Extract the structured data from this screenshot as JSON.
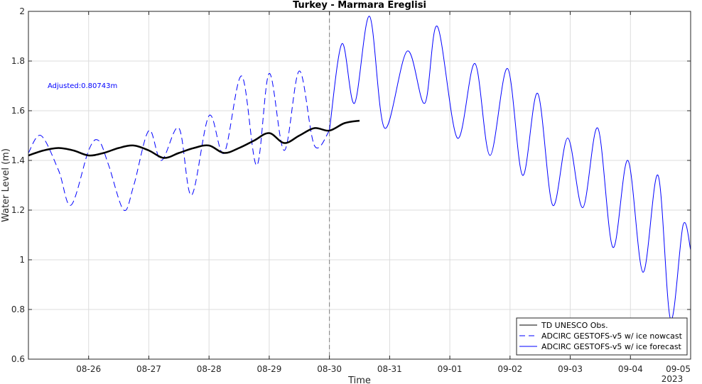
{
  "chart_data": {
    "type": "line",
    "title": "Turkey - Marmara Ereglisi",
    "xlabel": "Time",
    "ylabel": "Water Level (m)",
    "year_label": "2023",
    "annotation": "Adjusted:0.80743m",
    "ylim": [
      0.6,
      2.0
    ],
    "xlim": [
      "2023-08-25T00:00",
      "2023-09-05T00:00"
    ],
    "y_ticks": [
      0.6,
      0.8,
      1.0,
      1.2,
      1.4,
      1.6,
      1.8,
      2.0
    ],
    "y_tick_labels": [
      "0.6",
      "0.8",
      "1",
      "1.2",
      "1.4",
      "1.6",
      "1.8",
      "2"
    ],
    "x_ticks": [
      "2023-08-26",
      "2023-08-27",
      "2023-08-28",
      "2023-08-29",
      "2023-08-30",
      "2023-08-31",
      "2023-09-01",
      "2023-09-02",
      "2023-09-03",
      "2023-09-04",
      "2023-09-05"
    ],
    "x_tick_labels": [
      "08-26",
      "08-27",
      "08-28",
      "08-29",
      "08-30",
      "08-31",
      "09-01",
      "09-02",
      "09-03",
      "09-04",
      "09-05"
    ],
    "forecast_start": "2023-08-30T00:00",
    "grid": true,
    "legend_position": "bottom-right",
    "colors": {
      "obs": "#000000",
      "model": "#0000ff",
      "grid": "#dcdcdc",
      "divider": "#808080",
      "annotation": "#0000ff"
    },
    "series": [
      {
        "name": "TD UNESCO Obs.",
        "style": "solid",
        "x": [
          "2023-08-25T00:00",
          "2023-08-25T06:00",
          "2023-08-25T12:00",
          "2023-08-25T18:00",
          "2023-08-26T00:00",
          "2023-08-26T06:00",
          "2023-08-26T12:00",
          "2023-08-26T18:00",
          "2023-08-27T00:00",
          "2023-08-27T06:00",
          "2023-08-27T12:00",
          "2023-08-27T18:00",
          "2023-08-28T00:00",
          "2023-08-28T06:00",
          "2023-08-28T12:00",
          "2023-08-28T18:00",
          "2023-08-29T00:00",
          "2023-08-29T06:00",
          "2023-08-29T12:00",
          "2023-08-29T18:00",
          "2023-08-30T00:00",
          "2023-08-30T06:00",
          "2023-08-30T12:00"
        ],
        "y": [
          1.42,
          1.44,
          1.45,
          1.44,
          1.42,
          1.43,
          1.45,
          1.46,
          1.44,
          1.41,
          1.43,
          1.45,
          1.46,
          1.43,
          1.45,
          1.48,
          1.51,
          1.47,
          1.5,
          1.53,
          1.52,
          1.55,
          1.56
        ]
      },
      {
        "name": "ADCIRC GESTOFS-v5  w/ ice nowcast",
        "style": "dashed",
        "x": [
          "2023-08-25T00:00",
          "2023-08-25T05:00",
          "2023-08-25T12:00",
          "2023-08-25T17:00",
          "2023-08-26T00:00",
          "2023-08-26T04:00",
          "2023-08-26T08:00",
          "2023-08-26T14:00",
          "2023-08-26T18:00",
          "2023-08-27T00:00",
          "2023-08-27T05:00",
          "2023-08-27T12:00",
          "2023-08-27T17:00",
          "2023-08-28T00:00",
          "2023-08-28T06:00",
          "2023-08-28T13:00",
          "2023-08-28T19:00",
          "2023-08-29T00:00",
          "2023-08-29T06:00",
          "2023-08-29T12:00",
          "2023-08-29T18:00",
          "2023-08-30T00:00"
        ],
        "y": [
          1.43,
          1.5,
          1.36,
          1.22,
          1.44,
          1.48,
          1.38,
          1.2,
          1.3,
          1.52,
          1.4,
          1.53,
          1.26,
          1.58,
          1.43,
          1.74,
          1.38,
          1.75,
          1.44,
          1.76,
          1.46,
          1.52
        ]
      },
      {
        "name": "ADCIRC GESTOFS-v5  w/ ice forecast",
        "style": "solid",
        "x": [
          "2023-08-30T00:00",
          "2023-08-30T05:00",
          "2023-08-30T10:00",
          "2023-08-30T16:00",
          "2023-08-30T22:00",
          "2023-08-31T07:00",
          "2023-08-31T14:00",
          "2023-08-31T19:00",
          "2023-09-01T03:00",
          "2023-09-01T10:00",
          "2023-09-01T16:00",
          "2023-09-01T23:00",
          "2023-09-02T05:00",
          "2023-09-02T11:00",
          "2023-09-02T17:00",
          "2023-09-02T23:00",
          "2023-09-03T05:00",
          "2023-09-03T11:00",
          "2023-09-03T17:00",
          "2023-09-03T23:00",
          "2023-09-04T05:00",
          "2023-09-04T11:00",
          "2023-09-04T16:00",
          "2023-09-04T21:00",
          "2023-09-05T00:00"
        ],
        "y": [
          1.52,
          1.87,
          1.63,
          1.98,
          1.53,
          1.84,
          1.63,
          1.94,
          1.49,
          1.79,
          1.42,
          1.77,
          1.34,
          1.67,
          1.22,
          1.49,
          1.21,
          1.53,
          1.05,
          1.4,
          0.95,
          1.34,
          0.76,
          1.14,
          1.04
        ]
      }
    ]
  }
}
